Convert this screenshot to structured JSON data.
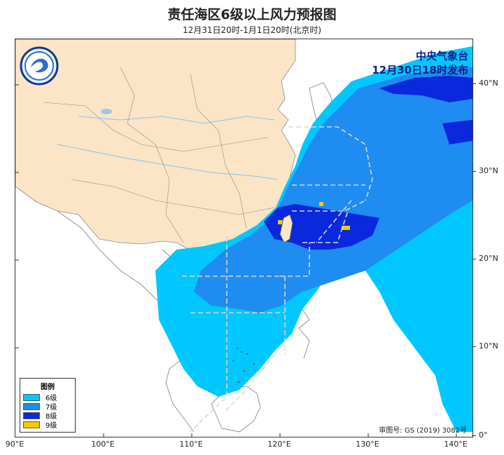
{
  "title": "责任海区6级以上风力预报图",
  "subtitle": "12月31日20时-1月1日20时(北京时)",
  "issuer": {
    "line1": "中央气象台",
    "line2": "12月30日18时发布"
  },
  "approval_number": "审图号: GS (2019) 3082号",
  "legend": {
    "title": "图例",
    "items": [
      {
        "label": "6级",
        "color": "#00c8ff"
      },
      {
        "label": "7级",
        "color": "#1e8cf0"
      },
      {
        "label": "8级",
        "color": "#0a28dc"
      },
      {
        "label": "9级",
        "color": "#f5c800"
      }
    ]
  },
  "axes": {
    "lat_ticks": [
      "40°N",
      "30°N",
      "20°N",
      "10°N",
      "0°"
    ],
    "lon_ticks": [
      "90°E",
      "100°E",
      "110°E",
      "120°E",
      "130°E",
      "140°E"
    ]
  },
  "colors": {
    "land_china": "#fbe5c6",
    "sea_background": "#ffffff",
    "boundary": "#8a8a8a",
    "river": "#9cc8e8"
  },
  "icons": [
    "cma-logo-icon"
  ]
}
